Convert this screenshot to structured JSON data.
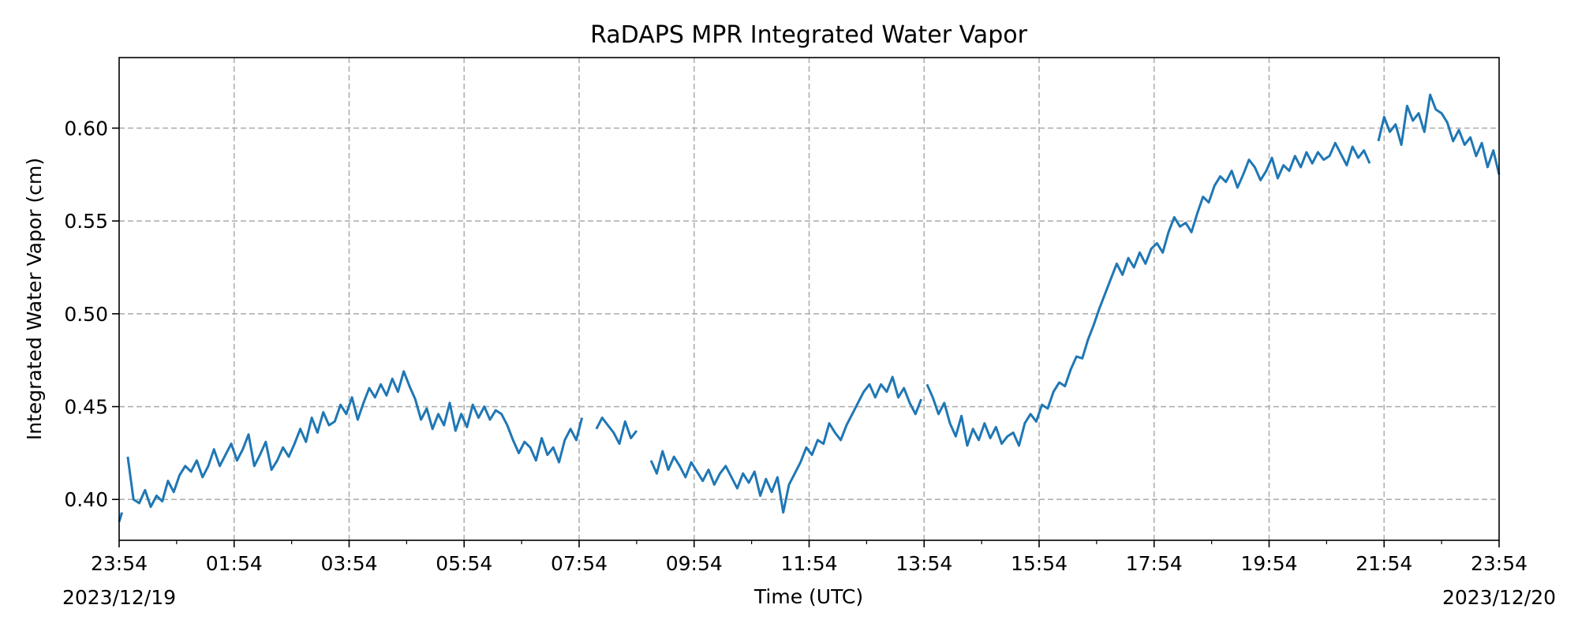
{
  "chart_data": {
    "type": "line",
    "title": "RaDAPS MPR Integrated Water Vapor",
    "xlabel": "Time (UTC)",
    "ylabel": "Integrated Water Vapor (cm)",
    "x_unit": "hours",
    "xlim": [
      0,
      24
    ],
    "ylim": [
      0.378,
      0.638
    ],
    "grid": true,
    "line_color": "#1f77b4",
    "x_ticks": {
      "values": [
        0,
        2,
        4,
        6,
        8,
        10,
        12,
        14,
        16,
        18,
        20,
        22,
        24
      ],
      "labels": [
        "23:54",
        "01:54",
        "03:54",
        "05:54",
        "07:54",
        "09:54",
        "11:54",
        "13:54",
        "15:54",
        "17:54",
        "19:54",
        "21:54",
        "23:54"
      ]
    },
    "x_date_labels": {
      "start": "2023/12/19",
      "end": "2023/12/20"
    },
    "y_ticks": {
      "values": [
        0.4,
        0.45,
        0.5,
        0.55,
        0.6
      ],
      "labels": [
        "0.40",
        "0.45",
        "0.50",
        "0.55",
        "0.60"
      ]
    },
    "series": [
      {
        "segments": [
          {
            "x": [
              0.0,
              0.05
            ],
            "y": [
              0.388,
              0.393
            ]
          },
          {
            "x": [
              0.15,
              0.25,
              0.35,
              0.45,
              0.55,
              0.65,
              0.75,
              0.85,
              0.95,
              1.05,
              1.15,
              1.25,
              1.35,
              1.45,
              1.55,
              1.65,
              1.75,
              1.85,
              1.95,
              2.05,
              2.15,
              2.25,
              2.35,
              2.45,
              2.55,
              2.65,
              2.75,
              2.85,
              2.95,
              3.05,
              3.15,
              3.25,
              3.35,
              3.45,
              3.55,
              3.65,
              3.75,
              3.85,
              3.95,
              4.05,
              4.15,
              4.25,
              4.35,
              4.45,
              4.55,
              4.65,
              4.75,
              4.85,
              4.95,
              5.05,
              5.15,
              5.25,
              5.35,
              5.45,
              5.55,
              5.65,
              5.75,
              5.85,
              5.95,
              6.05,
              6.15,
              6.25,
              6.35,
              6.45,
              6.55,
              6.65,
              6.75,
              6.85,
              6.95,
              7.05,
              7.15,
              7.25,
              7.35,
              7.45,
              7.55,
              7.65,
              7.75,
              7.85,
              7.95,
              8.05
            ],
            "y": [
              0.423,
              0.4,
              0.398,
              0.405,
              0.396,
              0.402,
              0.399,
              0.41,
              0.404,
              0.413,
              0.418,
              0.415,
              0.421,
              0.412,
              0.418,
              0.427,
              0.418,
              0.424,
              0.43,
              0.421,
              0.427,
              0.435,
              0.418,
              0.424,
              0.431,
              0.416,
              0.421,
              0.428,
              0.423,
              0.43,
              0.438,
              0.431,
              0.444,
              0.436,
              0.447,
              0.44,
              0.442,
              0.451,
              0.446,
              0.455,
              0.443,
              0.452,
              0.46,
              0.455,
              0.462,
              0.456,
              0.465,
              0.458,
              0.469,
              0.461,
              0.454,
              0.443,
              0.449,
              0.438,
              0.446,
              0.44,
              0.452,
              0.437,
              0.446,
              0.439,
              0.451,
              0.444,
              0.45,
              0.443,
              0.448,
              0.446,
              0.44,
              0.432,
              0.425,
              0.431,
              0.428,
              0.421,
              0.433,
              0.424,
              0.428,
              0.42,
              0.432,
              0.438,
              0.432,
              0.444
            ]
          },
          {
            "x": [
              8.3,
              8.4,
              8.5,
              8.6,
              8.7,
              8.8,
              8.9,
              9.0
            ],
            "y": [
              0.438,
              0.444,
              0.44,
              0.436,
              0.43,
              0.442,
              0.433,
              0.437
            ]
          },
          {
            "x": [
              9.25,
              9.35,
              9.45,
              9.55,
              9.65,
              9.75,
              9.85,
              9.95,
              10.05,
              10.15,
              10.25,
              10.35,
              10.45,
              10.55,
              10.65,
              10.75,
              10.85,
              10.95,
              11.05,
              11.15,
              11.25,
              11.35,
              11.45,
              11.55,
              11.65,
              11.75,
              11.85,
              11.95,
              12.05,
              12.15,
              12.25,
              12.35,
              12.45,
              12.55,
              12.65,
              12.75,
              12.85,
              12.95,
              13.05,
              13.15,
              13.25,
              13.35,
              13.45,
              13.55,
              13.65,
              13.75,
              13.85,
              13.95
            ],
            "y": [
              0.421,
              0.414,
              0.426,
              0.416,
              0.423,
              0.418,
              0.412,
              0.42,
              0.415,
              0.41,
              0.416,
              0.408,
              0.414,
              0.418,
              0.412,
              0.406,
              0.414,
              0.409,
              0.415,
              0.402,
              0.411,
              0.404,
              0.412,
              0.393,
              0.408,
              0.414,
              0.42,
              0.428,
              0.424,
              0.432,
              0.43,
              0.441,
              0.436,
              0.432,
              0.44,
              0.446,
              0.452,
              0.458,
              0.462,
              0.455,
              0.462,
              0.458,
              0.466,
              0.455,
              0.46,
              0.452,
              0.446,
              0.454
            ]
          },
          {
            "x": [
              14.05,
              14.15,
              14.25,
              14.35,
              14.45,
              14.55,
              14.65,
              14.75,
              14.85,
              14.95,
              15.05,
              15.15,
              15.25,
              15.35,
              15.45,
              15.55,
              15.65,
              15.75,
              15.85,
              15.95,
              16.05,
              16.15,
              16.25,
              16.35,
              16.45,
              16.55,
              16.65,
              16.75,
              16.85,
              16.95,
              17.05,
              17.15,
              17.25,
              17.35,
              17.45,
              17.55,
              17.65,
              17.75,
              17.85,
              17.95,
              18.05,
              18.15,
              18.25,
              18.35,
              18.45,
              18.55,
              18.65,
              18.75,
              18.85,
              18.95,
              19.05,
              19.15,
              19.25,
              19.35,
              19.45,
              19.55,
              19.65,
              19.75,
              19.85,
              19.95,
              20.05,
              20.15,
              20.25,
              20.35,
              20.45,
              20.55,
              20.65,
              20.75,
              20.85,
              20.95,
              21.05,
              21.15,
              21.25,
              21.35,
              21.45,
              21.55,
              21.65,
              21.75
            ],
            "y": [
              0.462,
              0.455,
              0.446,
              0.452,
              0.441,
              0.434,
              0.445,
              0.429,
              0.438,
              0.432,
              0.441,
              0.433,
              0.439,
              0.43,
              0.434,
              0.436,
              0.429,
              0.441,
              0.446,
              0.442,
              0.451,
              0.449,
              0.458,
              0.463,
              0.461,
              0.47,
              0.477,
              0.476,
              0.486,
              0.494,
              0.503,
              0.511,
              0.519,
              0.527,
              0.521,
              0.53,
              0.525,
              0.533,
              0.527,
              0.535,
              0.538,
              0.533,
              0.544,
              0.552,
              0.547,
              0.549,
              0.544,
              0.554,
              0.563,
              0.56,
              0.569,
              0.574,
              0.571,
              0.577,
              0.568,
              0.575,
              0.583,
              0.579,
              0.572,
              0.577,
              0.584,
              0.573,
              0.58,
              0.577,
              0.585,
              0.579,
              0.587,
              0.581,
              0.587,
              0.583,
              0.585,
              0.592,
              0.586,
              0.58,
              0.59,
              0.584,
              0.588,
              0.581
            ]
          },
          {
            "x": [
              21.9,
              22.0,
              22.1,
              22.2,
              22.3,
              22.4,
              22.5,
              22.6,
              22.7,
              22.8,
              22.9,
              23.0,
              23.1,
              23.2,
              23.3,
              23.4,
              23.5,
              23.6,
              23.7,
              23.8,
              23.9,
              24.0
            ],
            "y": [
              0.593,
              0.606,
              0.598,
              0.602,
              0.591,
              0.612,
              0.604,
              0.608,
              0.598,
              0.618,
              0.61,
              0.608,
              0.603,
              0.593,
              0.599,
              0.591,
              0.595,
              0.585,
              0.592,
              0.579,
              0.588,
              0.575
            ]
          }
        ]
      }
    ]
  }
}
